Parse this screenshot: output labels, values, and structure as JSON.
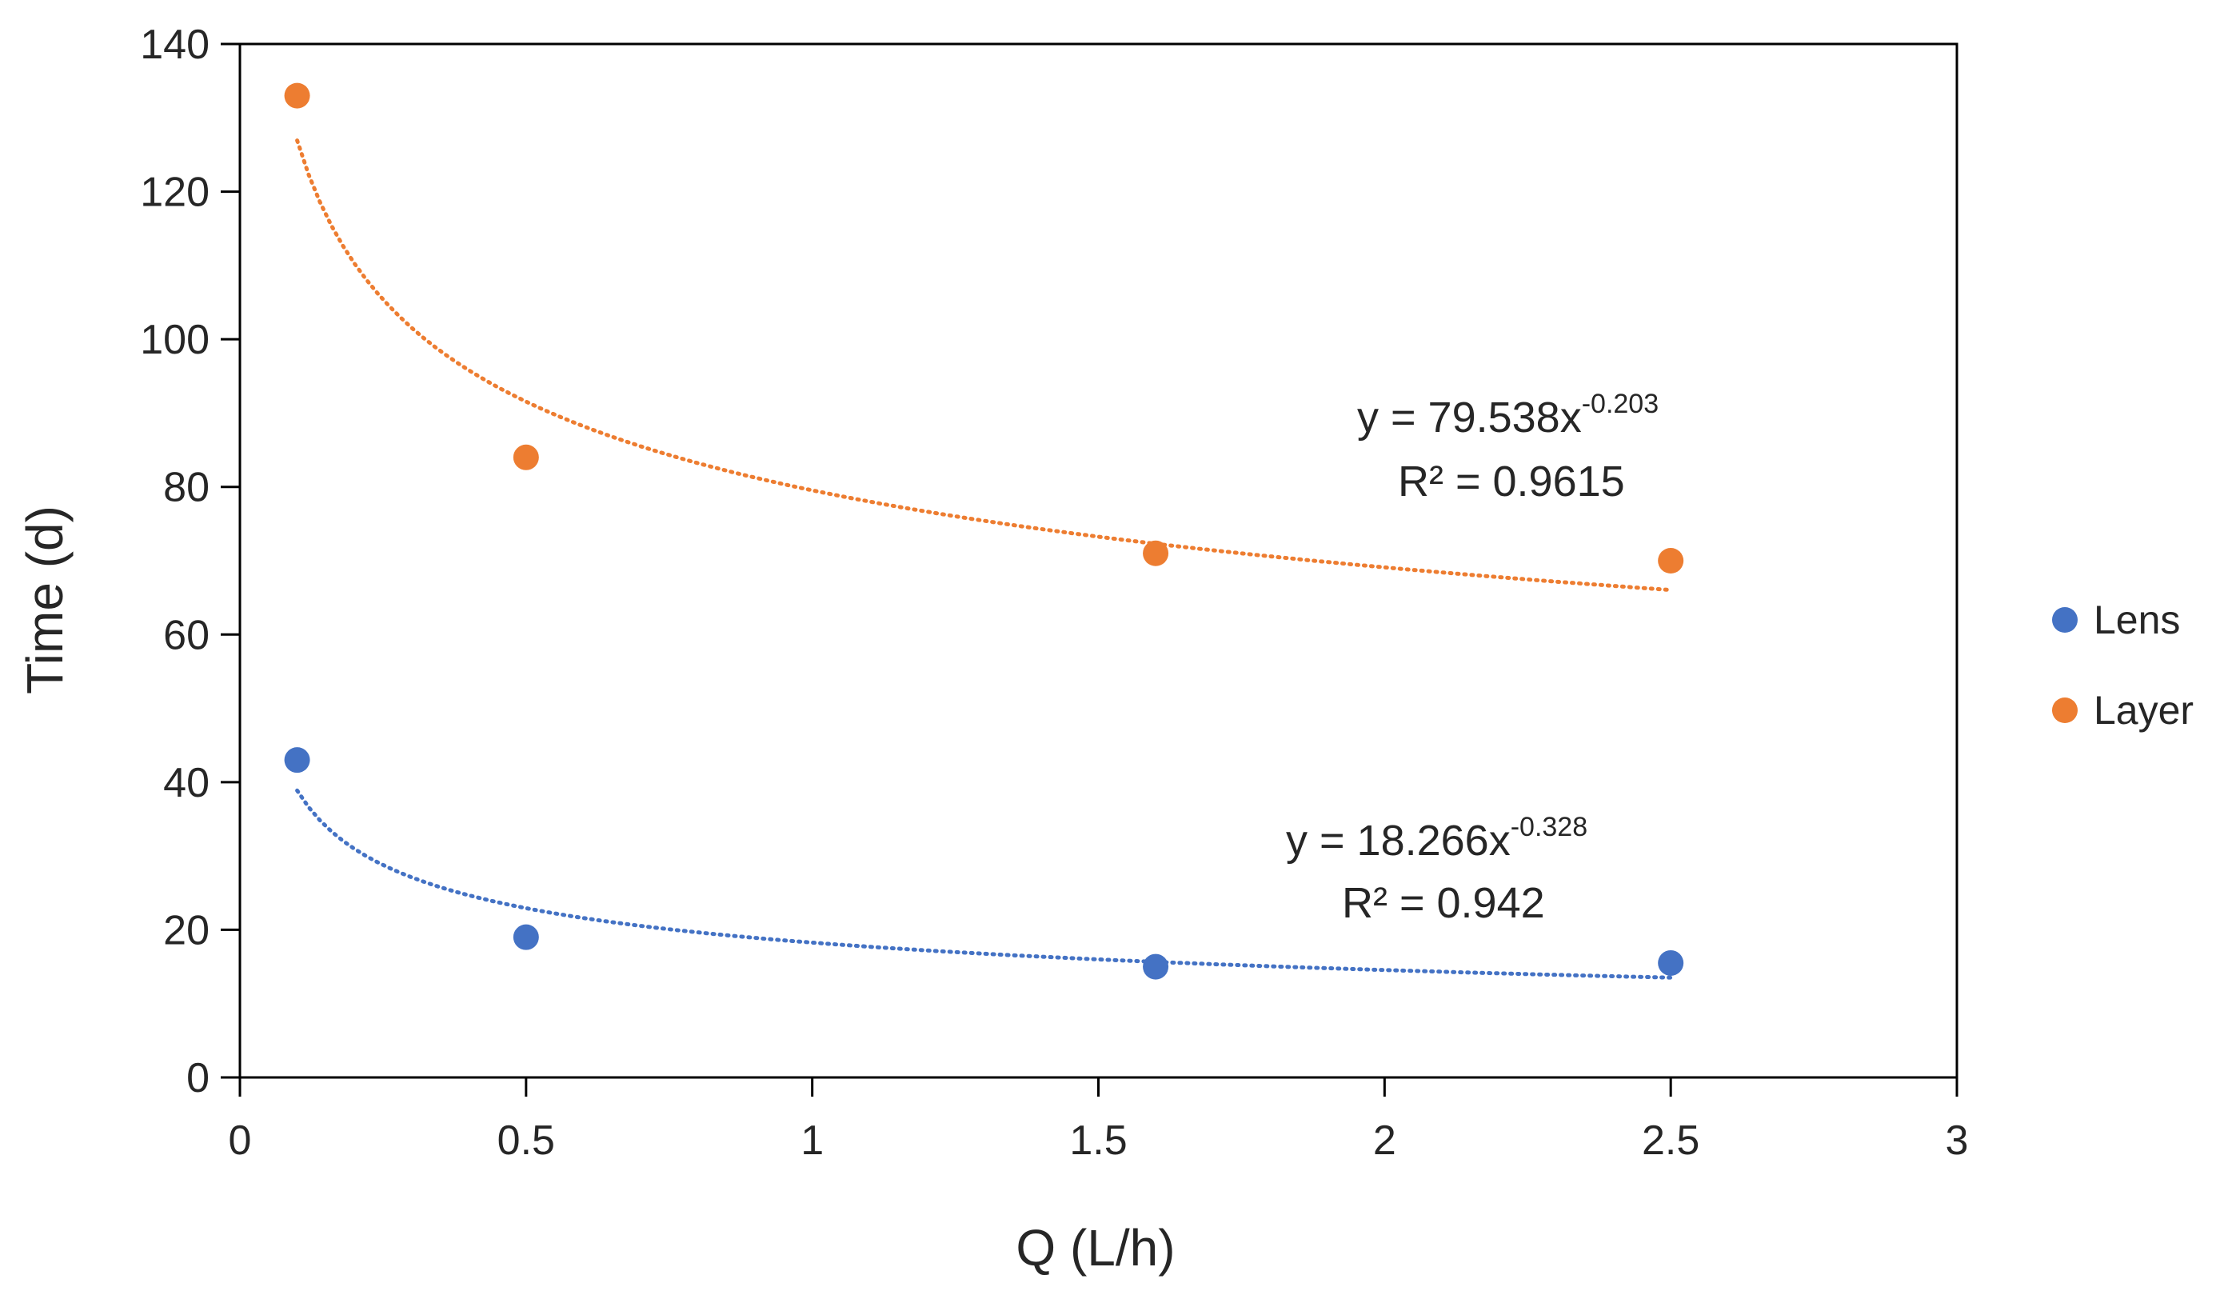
{
  "chart_data": {
    "type": "scatter",
    "title": "",
    "xlabel": "Q (L/h)",
    "ylabel": "Time (d)",
    "xlim": [
      0,
      3
    ],
    "ylim": [
      0,
      140
    ],
    "xticks": [
      0,
      0.5,
      1,
      1.5,
      2,
      2.5,
      3
    ],
    "xtick_labels": [
      "0",
      "0.5",
      "1",
      "1.5",
      "2",
      "2.5",
      "3"
    ],
    "yticks": [
      0,
      20,
      40,
      60,
      80,
      100,
      120,
      140
    ],
    "ytick_labels": [
      "0",
      "20",
      "40",
      "60",
      "80",
      "100",
      "120",
      "140"
    ],
    "grid": false,
    "legend_position": "right",
    "series": [
      {
        "name": "Lens",
        "color": "#4472C4",
        "x": [
          0.1,
          0.5,
          1.6,
          2.5
        ],
        "y": [
          43,
          19,
          15,
          15.5
        ],
        "trendline": {
          "type": "power",
          "a": 18.266,
          "b": -0.328,
          "x_range": [
            0.1,
            2.5
          ],
          "equation": "y = 18.266x",
          "exponent": "-0.328",
          "r2": "R² = 0.942"
        }
      },
      {
        "name": "Layer",
        "color": "#ED7D31",
        "x": [
          0.1,
          0.5,
          1.6,
          2.5
        ],
        "y": [
          133,
          84,
          71,
          70
        ],
        "trendline": {
          "type": "power",
          "a": 79.538,
          "b": -0.203,
          "x_range": [
            0.1,
            2.5
          ],
          "equation": "y = 79.538x",
          "exponent": "-0.203",
          "r2": "R² = 0.9615"
        }
      }
    ]
  }
}
